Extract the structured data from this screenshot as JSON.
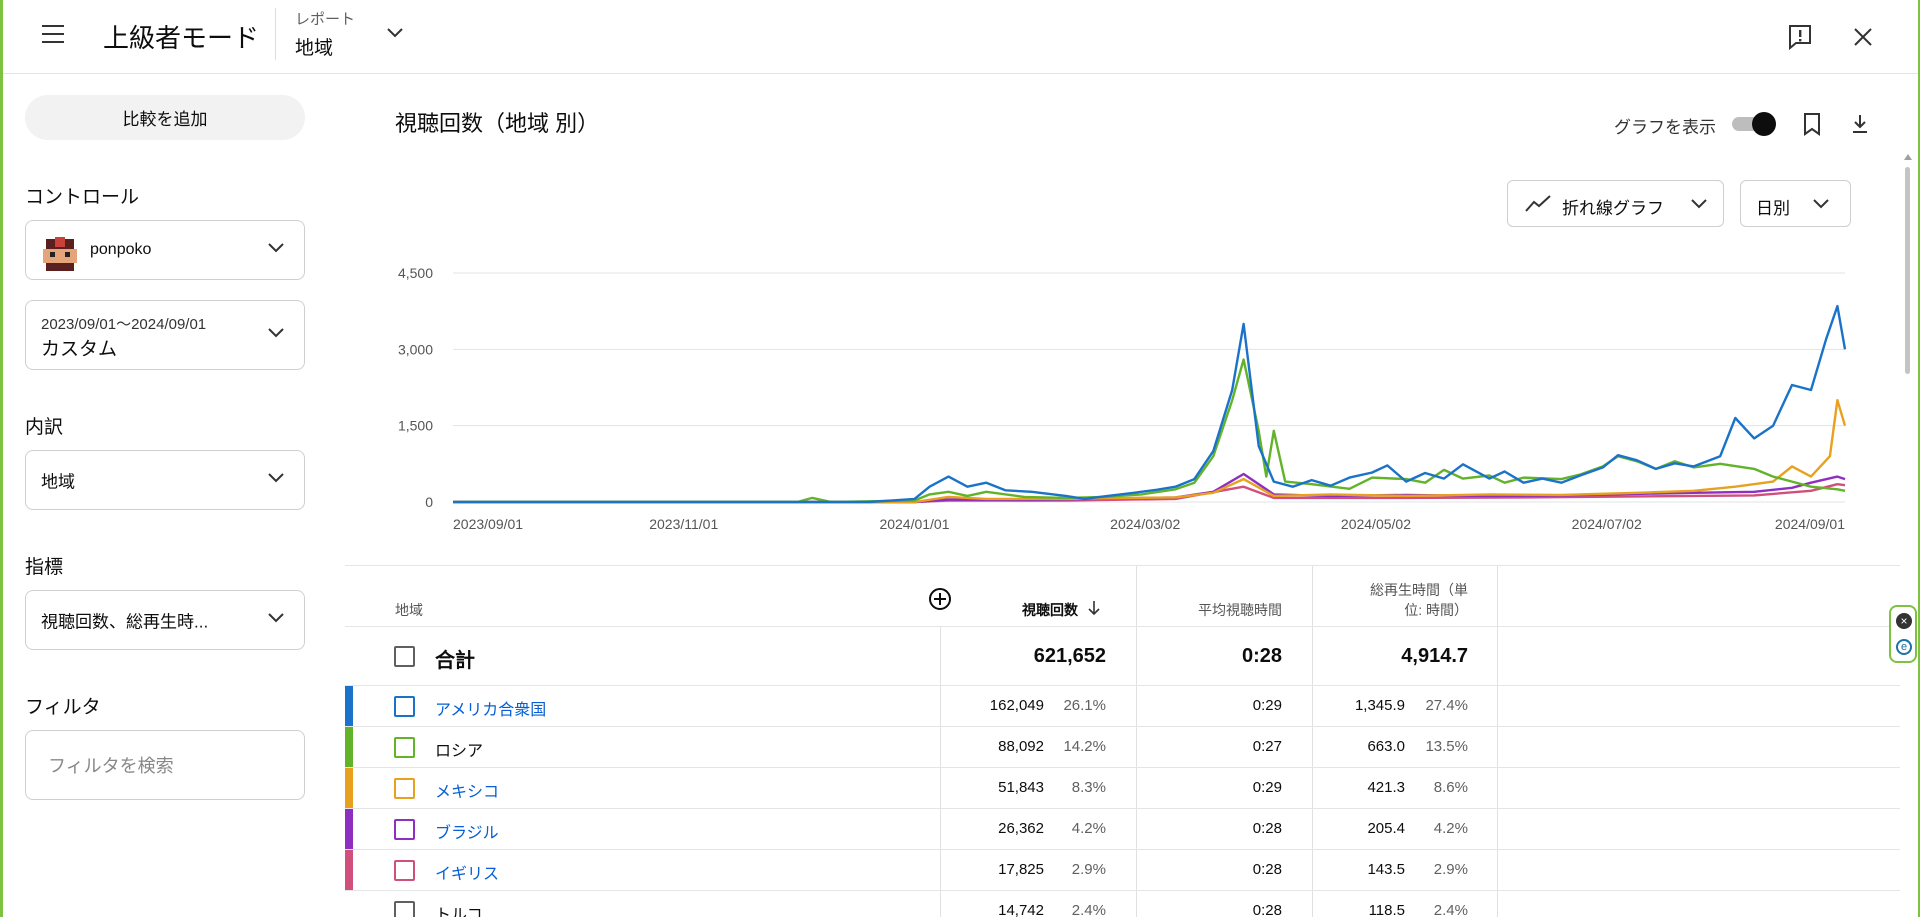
{
  "header": {
    "title": "上級者モード",
    "report_caption": "レポート",
    "report_value": "地域"
  },
  "sidebar": {
    "add_compare": "比較を追加",
    "controls_label": "コントロール",
    "channel": "ponpoko",
    "date_range": "2023/09/01〜2024/09/01",
    "date_mode": "カスタム",
    "breakdown_label": "内訳",
    "breakdown_value": "地域",
    "metrics_label": "指標",
    "metrics_value": "視聴回数、総再生時...",
    "filter_label": "フィルタ",
    "filter_placeholder": "フィルタを検索"
  },
  "main": {
    "chart_title": "視聴回数（地域 別）",
    "show_graph_label": "グラフを表示",
    "show_graph_on": true,
    "chart_type": "折れ線グラフ",
    "period": "日別"
  },
  "chart_data": {
    "type": "line",
    "x_ticks": [
      "2023/09/01",
      "2023/11/01",
      "2024/01/01",
      "2024/03/02",
      "2024/05/02",
      "2024/07/02",
      "2024/09/01"
    ],
    "y_ticks": [
      "4,500",
      "3,000",
      "1,500",
      "0"
    ],
    "ylim": [
      0,
      4500
    ],
    "grid": true,
    "series": [
      {
        "name": "アメリカ合衆国",
        "color": "#1a73c8",
        "points": [
          [
            "2023-09-01",
            0
          ],
          [
            "2023-12-20",
            0
          ],
          [
            "2024-01-01",
            60
          ],
          [
            "2024-01-05",
            300
          ],
          [
            "2024-01-10",
            500
          ],
          [
            "2024-01-15",
            300
          ],
          [
            "2024-01-20",
            380
          ],
          [
            "2024-01-25",
            230
          ],
          [
            "2024-02-01",
            200
          ],
          [
            "2024-02-10",
            120
          ],
          [
            "2024-02-15",
            60
          ],
          [
            "2024-02-20",
            110
          ],
          [
            "2024-02-28",
            180
          ],
          [
            "2024-03-05",
            240
          ],
          [
            "2024-03-10",
            300
          ],
          [
            "2024-03-15",
            450
          ],
          [
            "2024-03-20",
            1000
          ],
          [
            "2024-03-25",
            2200
          ],
          [
            "2024-03-28",
            3500
          ],
          [
            "2024-04-01",
            1100
          ],
          [
            "2024-04-05",
            400
          ],
          [
            "2024-04-10",
            300
          ],
          [
            "2024-04-15",
            430
          ],
          [
            "2024-04-20",
            320
          ],
          [
            "2024-04-25",
            480
          ],
          [
            "2024-05-01",
            580
          ],
          [
            "2024-05-05",
            720
          ],
          [
            "2024-05-10",
            400
          ],
          [
            "2024-05-15",
            570
          ],
          [
            "2024-05-20",
            460
          ],
          [
            "2024-05-25",
            740
          ],
          [
            "2024-06-01",
            460
          ],
          [
            "2024-06-05",
            600
          ],
          [
            "2024-06-10",
            380
          ],
          [
            "2024-06-15",
            460
          ],
          [
            "2024-06-20",
            380
          ],
          [
            "2024-06-25",
            520
          ],
          [
            "2024-07-01",
            680
          ],
          [
            "2024-07-05",
            920
          ],
          [
            "2024-07-10",
            820
          ],
          [
            "2024-07-15",
            650
          ],
          [
            "2024-07-20",
            760
          ],
          [
            "2024-07-25",
            700
          ],
          [
            "2024-08-01",
            900
          ],
          [
            "2024-08-05",
            1650
          ],
          [
            "2024-08-10",
            1250
          ],
          [
            "2024-08-15",
            1500
          ],
          [
            "2024-08-20",
            2300
          ],
          [
            "2024-08-25",
            2200
          ],
          [
            "2024-08-29",
            3200
          ],
          [
            "2024-09-01",
            3850
          ],
          [
            "2024-09-03",
            3000
          ]
        ]
      },
      {
        "name": "ロシア",
        "color": "#62b32a",
        "points": [
          [
            "2023-09-01",
            0
          ],
          [
            "2023-12-01",
            0
          ],
          [
            "2023-12-05",
            80
          ],
          [
            "2023-12-10",
            0
          ],
          [
            "2024-01-01",
            30
          ],
          [
            "2024-01-05",
            150
          ],
          [
            "2024-01-10",
            200
          ],
          [
            "2024-01-15",
            120
          ],
          [
            "2024-01-20",
            200
          ],
          [
            "2024-01-30",
            100
          ],
          [
            "2024-02-10",
            80
          ],
          [
            "2024-02-20",
            100
          ],
          [
            "2024-03-01",
            150
          ],
          [
            "2024-03-10",
            250
          ],
          [
            "2024-03-15",
            380
          ],
          [
            "2024-03-20",
            900
          ],
          [
            "2024-03-25",
            2000
          ],
          [
            "2024-03-28",
            2800
          ],
          [
            "2024-04-01",
            1400
          ],
          [
            "2024-04-03",
            500
          ],
          [
            "2024-04-05",
            1400
          ],
          [
            "2024-04-08",
            400
          ],
          [
            "2024-04-15",
            350
          ],
          [
            "2024-04-25",
            260
          ],
          [
            "2024-05-01",
            480
          ],
          [
            "2024-05-10",
            450
          ],
          [
            "2024-05-15",
            380
          ],
          [
            "2024-05-20",
            630
          ],
          [
            "2024-05-25",
            460
          ],
          [
            "2024-06-01",
            520
          ],
          [
            "2024-06-05",
            380
          ],
          [
            "2024-06-10",
            480
          ],
          [
            "2024-06-20",
            450
          ],
          [
            "2024-06-25",
            540
          ],
          [
            "2024-07-01",
            700
          ],
          [
            "2024-07-05",
            900
          ],
          [
            "2024-07-10",
            800
          ],
          [
            "2024-07-15",
            650
          ],
          [
            "2024-07-20",
            800
          ],
          [
            "2024-07-25",
            680
          ],
          [
            "2024-08-01",
            750
          ],
          [
            "2024-08-10",
            650
          ],
          [
            "2024-08-15",
            500
          ],
          [
            "2024-08-20",
            400
          ],
          [
            "2024-08-25",
            300
          ],
          [
            "2024-09-01",
            250
          ],
          [
            "2024-09-03",
            220
          ]
        ]
      },
      {
        "name": "メキシコ",
        "color": "#e8a11f",
        "points": [
          [
            "2023-09-01",
            0
          ],
          [
            "2024-01-01",
            0
          ],
          [
            "2024-01-10",
            100
          ],
          [
            "2024-01-20",
            60
          ],
          [
            "2024-02-10",
            60
          ],
          [
            "2024-03-10",
            90
          ],
          [
            "2024-03-20",
            180
          ],
          [
            "2024-03-28",
            450
          ],
          [
            "2024-04-05",
            120
          ],
          [
            "2024-04-20",
            150
          ],
          [
            "2024-05-10",
            120
          ],
          [
            "2024-06-01",
            150
          ],
          [
            "2024-06-20",
            140
          ],
          [
            "2024-07-10",
            180
          ],
          [
            "2024-07-25",
            220
          ],
          [
            "2024-08-05",
            300
          ],
          [
            "2024-08-15",
            400
          ],
          [
            "2024-08-20",
            700
          ],
          [
            "2024-08-25",
            500
          ],
          [
            "2024-08-30",
            900
          ],
          [
            "2024-09-01",
            2000
          ],
          [
            "2024-09-03",
            1500
          ]
        ]
      },
      {
        "name": "ブラジル",
        "color": "#8e2fc2",
        "points": [
          [
            "2023-09-01",
            0
          ],
          [
            "2024-01-01",
            0
          ],
          [
            "2024-01-10",
            50
          ],
          [
            "2024-02-01",
            40
          ],
          [
            "2024-03-10",
            90
          ],
          [
            "2024-03-20",
            200
          ],
          [
            "2024-03-28",
            550
          ],
          [
            "2024-04-05",
            150
          ],
          [
            "2024-04-20",
            120
          ],
          [
            "2024-05-10",
            140
          ],
          [
            "2024-06-01",
            120
          ],
          [
            "2024-06-20",
            130
          ],
          [
            "2024-07-10",
            160
          ],
          [
            "2024-07-25",
            180
          ],
          [
            "2024-08-10",
            200
          ],
          [
            "2024-08-20",
            280
          ],
          [
            "2024-08-25",
            380
          ],
          [
            "2024-09-01",
            500
          ],
          [
            "2024-09-03",
            450
          ]
        ]
      },
      {
        "name": "イギリス",
        "color": "#d14f7c",
        "points": [
          [
            "2023-09-01",
            0
          ],
          [
            "2024-01-01",
            0
          ],
          [
            "2024-01-10",
            30
          ],
          [
            "2024-02-10",
            30
          ],
          [
            "2024-03-10",
            60
          ],
          [
            "2024-03-28",
            300
          ],
          [
            "2024-04-05",
            80
          ],
          [
            "2024-05-10",
            80
          ],
          [
            "2024-06-10",
            90
          ],
          [
            "2024-07-10",
            110
          ],
          [
            "2024-08-10",
            130
          ],
          [
            "2024-08-25",
            220
          ],
          [
            "2024-09-01",
            350
          ],
          [
            "2024-09-03",
            330
          ]
        ]
      }
    ]
  },
  "table": {
    "col_region": "地域",
    "col_views": "視聴回数",
    "col_avg": "平均視聴時間",
    "col_watch_1": "総再生時間（単",
    "col_watch_2": "位: 時間）",
    "total": {
      "label": "合計",
      "views": "621,652",
      "avg": "0:28",
      "watch": "4,914.7"
    },
    "rows": [
      {
        "name": "アメリカ合衆国",
        "views": "162,049",
        "views_pct": "26.1%",
        "avg": "0:29",
        "watch": "1,345.9",
        "watch_pct": "27.4%",
        "color": "#1a73c8",
        "link": true
      },
      {
        "name": "ロシア",
        "views": "88,092",
        "views_pct": "14.2%",
        "avg": "0:27",
        "watch": "663.0",
        "watch_pct": "13.5%",
        "color": "#62b32a",
        "link": false
      },
      {
        "name": "メキシコ",
        "views": "51,843",
        "views_pct": "8.3%",
        "avg": "0:29",
        "watch": "421.3",
        "watch_pct": "8.6%",
        "color": "#e8a11f",
        "link": true
      },
      {
        "name": "ブラジル",
        "views": "26,362",
        "views_pct": "4.2%",
        "avg": "0:28",
        "watch": "205.4",
        "watch_pct": "4.2%",
        "color": "#8e2fc2",
        "link": true
      },
      {
        "name": "イギリス",
        "views": "17,825",
        "views_pct": "2.9%",
        "avg": "0:28",
        "watch": "143.5",
        "watch_pct": "2.9%",
        "color": "#d14f7c",
        "link": true
      },
      {
        "name": "トルコ",
        "views": "14,742",
        "views_pct": "2.4%",
        "avg": "0:28",
        "watch": "118.5",
        "watch_pct": "2.4%",
        "color": "",
        "link": false
      }
    ]
  }
}
